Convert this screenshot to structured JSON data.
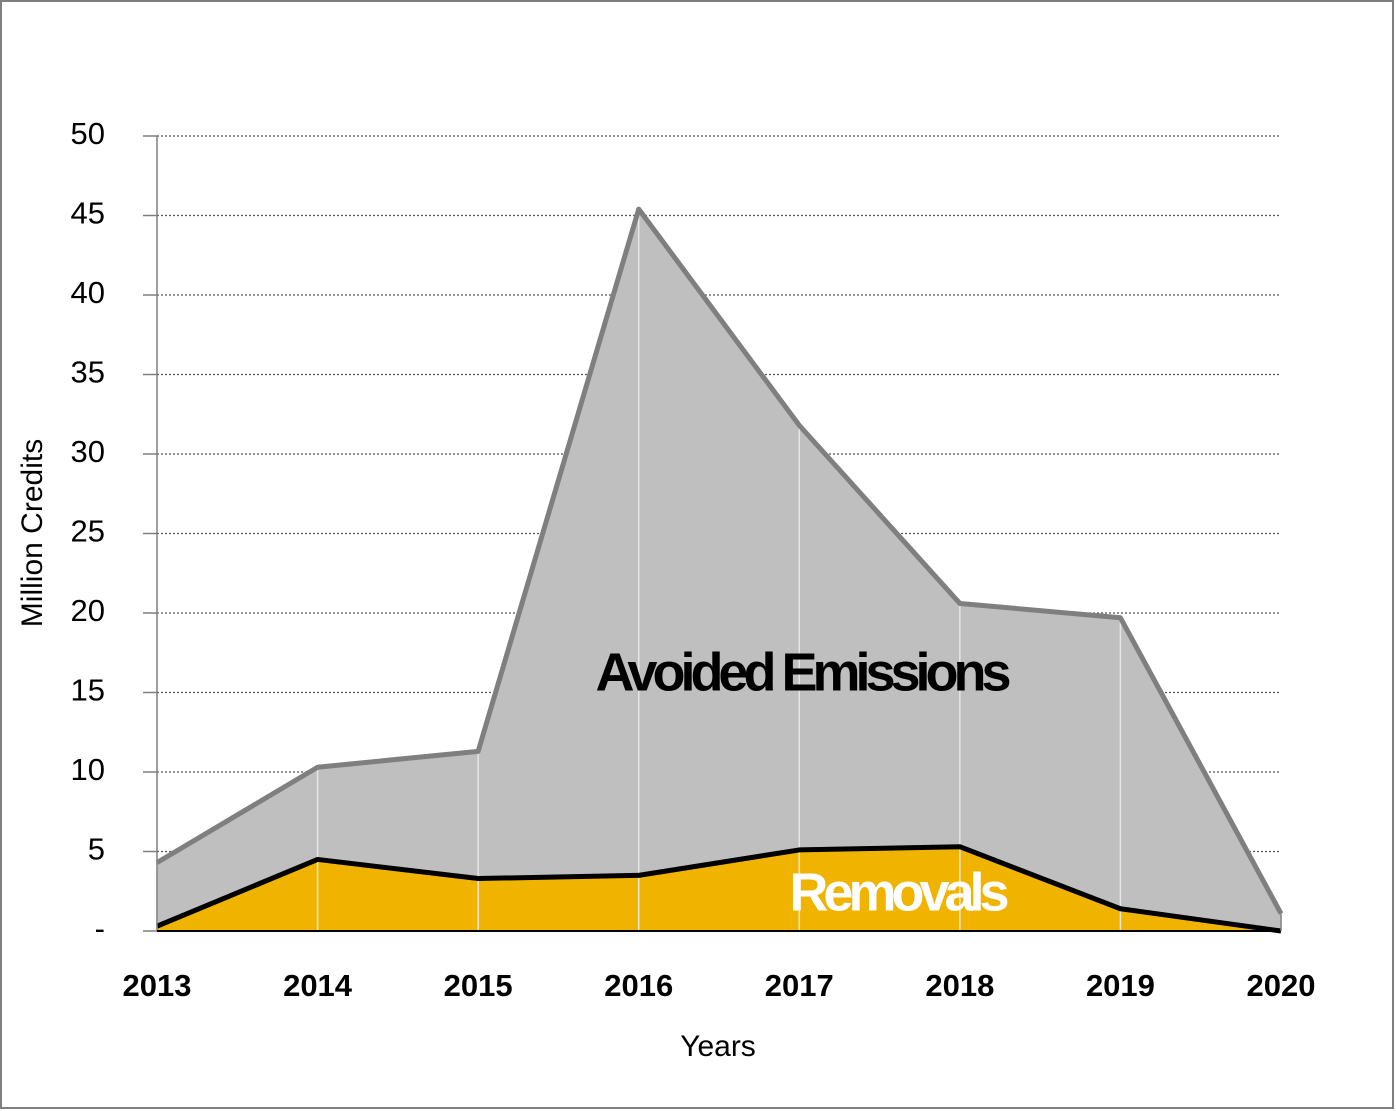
{
  "chart_data": {
    "type": "stacked-area",
    "categories": [
      "2013",
      "2014",
      "2015",
      "2016",
      "2017",
      "2018",
      "2019",
      "2020"
    ],
    "series": [
      {
        "name": "Removals",
        "color": "#f0b400",
        "line_color": "#000000",
        "values": [
          0.3,
          4.5,
          3.3,
          3.5,
          5.1,
          5.3,
          1.4,
          0
        ]
      },
      {
        "name": "Avoided Emissions",
        "color": "#bfbfbf",
        "line_color": "#7f7f7f",
        "values": [
          4.0,
          5.8,
          8.0,
          41.9,
          26.7,
          15.3,
          18.3,
          1.1
        ]
      }
    ],
    "xlabel": "Years",
    "ylabel": "Million Credits",
    "ylim": [
      0,
      50
    ],
    "yticks": [
      {
        "value": 0,
        "label": "-"
      },
      5,
      10,
      15,
      20,
      25,
      30,
      35,
      40,
      45,
      50
    ],
    "grid": true
  }
}
